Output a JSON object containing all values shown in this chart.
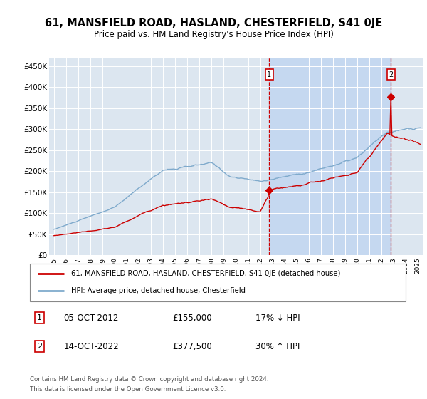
{
  "title": "61, MANSFIELD ROAD, HASLAND, CHESTERFIELD, S41 0JE",
  "subtitle": "Price paid vs. HM Land Registry's House Price Index (HPI)",
  "title_fontsize": 10.5,
  "subtitle_fontsize": 8.5,
  "plot_bg_color": "#dce6f0",
  "shade_color": "#c5d8f0",
  "ylabel_values": [
    "£0",
    "£50K",
    "£100K",
    "£150K",
    "£200K",
    "£250K",
    "£300K",
    "£350K",
    "£400K",
    "£450K"
  ],
  "ytick_values": [
    0,
    50000,
    100000,
    150000,
    200000,
    250000,
    300000,
    350000,
    400000,
    450000
  ],
  "ylim": [
    0,
    470000
  ],
  "xlim_start": 1994.6,
  "xlim_end": 2025.4,
  "xtick_years": [
    1995,
    1996,
    1997,
    1998,
    1999,
    2000,
    2001,
    2002,
    2003,
    2004,
    2005,
    2006,
    2007,
    2008,
    2009,
    2010,
    2011,
    2012,
    2013,
    2014,
    2015,
    2016,
    2017,
    2018,
    2019,
    2020,
    2021,
    2022,
    2023,
    2024,
    2025
  ],
  "red_line_color": "#cc0000",
  "blue_line_color": "#7faacc",
  "vline_color": "#cc0000",
  "marker_color": "#cc0000",
  "ann1_x": 2012.75,
  "ann1_y": 155000,
  "ann2_x": 2022.78,
  "ann2_y": 377500,
  "annotation1": {
    "label": "1",
    "date": "05-OCT-2012",
    "price": "£155,000",
    "hpi_text": "17% ↓ HPI"
  },
  "annotation2": {
    "label": "2",
    "date": "14-OCT-2022",
    "price": "£377,500",
    "hpi_text": "30% ↑ HPI"
  },
  "legend_line1": "61, MANSFIELD ROAD, HASLAND, CHESTERFIELD, S41 0JE (detached house)",
  "legend_line2": "HPI: Average price, detached house, Chesterfield",
  "footer1": "Contains HM Land Registry data © Crown copyright and database right 2024.",
  "footer2": "This data is licensed under the Open Government Licence v3.0."
}
